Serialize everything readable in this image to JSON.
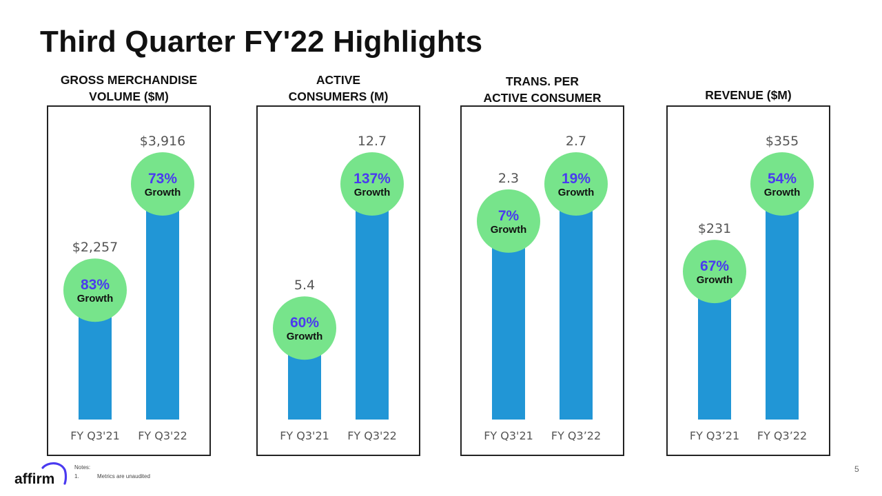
{
  "title": "Third Quarter FY'22 Highlights",
  "colors": {
    "bar": "#2196D6",
    "circle": "#77E48B",
    "growth_pct": "#4A3AF0",
    "frame": "#222222"
  },
  "chart_data": [
    {
      "type": "bar",
      "title": [
        "GROSS MERCHANDISE",
        "VOLUME ($M)"
      ],
      "categories": [
        "FY Q3'21",
        "FY Q3'22"
      ],
      "values": [
        2257,
        3916
      ],
      "value_labels": [
        "$2,257",
        "$3,916"
      ],
      "growth": [
        "83%",
        "73%"
      ],
      "growth_label": "Growth"
    },
    {
      "type": "bar",
      "title": [
        "ACTIVE",
        "CONSUMERS (M)"
      ],
      "categories": [
        "FY Q3'21",
        "FY Q3'22"
      ],
      "values": [
        5.4,
        12.7
      ],
      "value_labels": [
        "5.4",
        "12.7"
      ],
      "growth": [
        "60%",
        "137%"
      ],
      "growth_label": "Growth"
    },
    {
      "type": "bar",
      "title": [
        "TRANS. PER",
        "ACTIVE CONSUMER"
      ],
      "categories": [
        "FY Q3'21",
        "FY Q3’22"
      ],
      "values": [
        2.3,
        2.7
      ],
      "value_labels": [
        "2.3",
        "2.7"
      ],
      "growth": [
        "7%",
        "19%"
      ],
      "growth_label": "Growth"
    },
    {
      "type": "bar",
      "title": [
        "REVENUE ($M)"
      ],
      "categories": [
        "FY Q3’21",
        "FY Q3’22"
      ],
      "values": [
        231,
        355
      ],
      "value_labels": [
        "$231",
        "$355"
      ],
      "growth": [
        "67%",
        "54%"
      ],
      "growth_label": "Growth"
    }
  ],
  "notes": {
    "heading": "Notes:",
    "items": [
      {
        "num": "1.",
        "text": "Metrics are unaudited"
      }
    ]
  },
  "logo_text": "affirm",
  "page_number": "5"
}
